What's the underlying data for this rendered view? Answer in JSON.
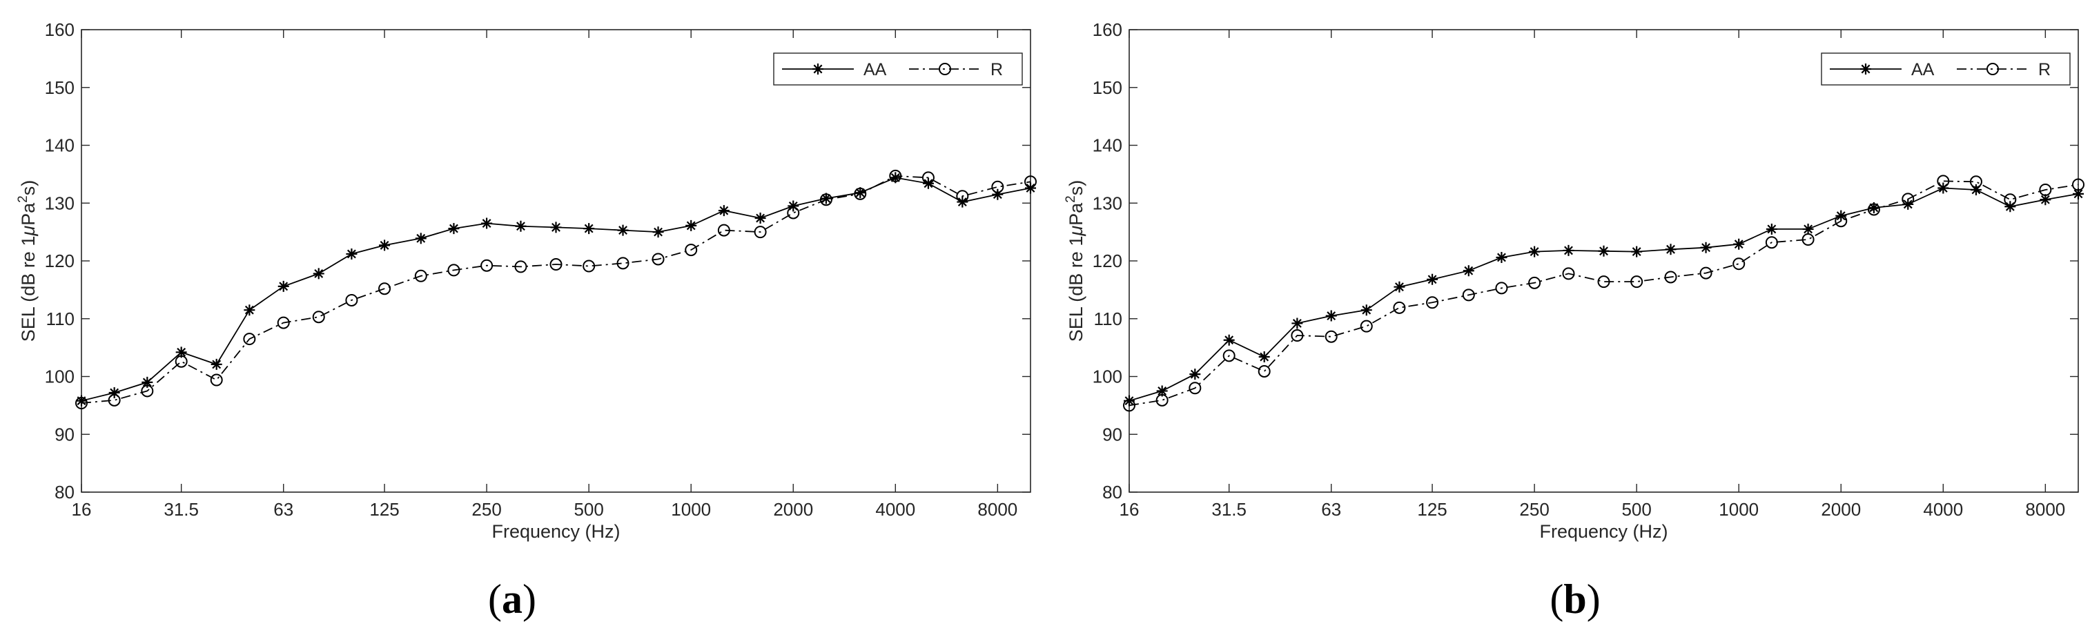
{
  "figure": {
    "panels": [
      {
        "label_open": "(",
        "label_letter": "a",
        "label_close": ")"
      },
      {
        "label_open": "(",
        "label_letter": "b",
        "label_close": ")"
      }
    ]
  },
  "chart_data": [
    {
      "type": "line",
      "title": "",
      "xlabel": "Frequency (Hz)",
      "ylabel_prefix": "SEL (dB re 1",
      "ylabel_mu": "μ",
      "ylabel_pa": "Pa",
      "ylabel_sup": "2",
      "ylabel_suffix": "s)",
      "x_scale": "log",
      "xlim": [
        16,
        10000
      ],
      "ylim": [
        80,
        160
      ],
      "yticks": [
        80,
        90,
        100,
        110,
        120,
        130,
        140,
        150,
        160
      ],
      "xticks": [
        16,
        31.5,
        63,
        125,
        250,
        500,
        1000,
        2000,
        4000,
        8000
      ],
      "xtick_labels": [
        "16",
        "31.5",
        "63",
        "125",
        "250",
        "500",
        "1000",
        "2000",
        "4000",
        "8000"
      ],
      "grid": false,
      "legend_position": "top-right",
      "x": [
        16,
        20,
        25,
        31.5,
        40,
        50,
        63,
        80,
        100,
        125,
        160,
        200,
        250,
        315,
        400,
        500,
        630,
        800,
        1000,
        1250,
        1600,
        2000,
        2500,
        3150,
        4000,
        5000,
        6300,
        8000,
        10000
      ],
      "series": [
        {
          "name": "AA",
          "marker": "star",
          "dash": "solid",
          "color": "#000000",
          "values": [
            95.8,
            97.2,
            99.0,
            104.2,
            102.1,
            111.5,
            115.6,
            117.8,
            121.2,
            122.7,
            123.9,
            125.6,
            126.5,
            126.0,
            125.8,
            125.6,
            125.3,
            125.0,
            126.1,
            128.7,
            127.4,
            129.5,
            130.8,
            131.8,
            134.4,
            133.4,
            130.2,
            131.5,
            132.6
          ]
        },
        {
          "name": "R",
          "marker": "circle",
          "dash": "dashdot",
          "color": "#000000",
          "values": [
            95.4,
            95.9,
            97.5,
            102.6,
            99.4,
            106.5,
            109.3,
            110.3,
            113.2,
            115.2,
            117.4,
            118.4,
            119.2,
            119.0,
            119.4,
            119.1,
            119.6,
            120.3,
            121.9,
            125.3,
            125.0,
            128.3,
            130.6,
            131.6,
            134.7,
            134.4,
            131.2,
            132.8,
            133.7
          ]
        }
      ]
    },
    {
      "type": "line",
      "title": "",
      "xlabel": "Frequency (Hz)",
      "ylabel_prefix": "SEL (dB re 1",
      "ylabel_mu": "μ",
      "ylabel_pa": "Pa",
      "ylabel_sup": "2",
      "ylabel_suffix": "s)",
      "x_scale": "log",
      "xlim": [
        16,
        10000
      ],
      "ylim": [
        80,
        160
      ],
      "yticks": [
        80,
        90,
        100,
        110,
        120,
        130,
        140,
        150,
        160
      ],
      "xticks": [
        16,
        31.5,
        63,
        125,
        250,
        500,
        1000,
        2000,
        4000,
        8000
      ],
      "xtick_labels": [
        "16",
        "31.5",
        "63",
        "125",
        "250",
        "500",
        "1000",
        "2000",
        "4000",
        "8000"
      ],
      "grid": false,
      "legend_position": "top-right",
      "x": [
        16,
        20,
        25,
        31.5,
        40,
        50,
        63,
        80,
        100,
        125,
        160,
        200,
        250,
        315,
        400,
        500,
        630,
        800,
        1000,
        1250,
        1600,
        2000,
        2500,
        3150,
        4000,
        5000,
        6300,
        8000,
        10000
      ],
      "series": [
        {
          "name": "AA",
          "marker": "star",
          "dash": "solid",
          "color": "#000000",
          "values": [
            95.8,
            97.5,
            100.4,
            106.3,
            103.4,
            109.2,
            110.5,
            111.5,
            115.5,
            116.8,
            118.3,
            120.6,
            121.6,
            121.8,
            121.7,
            121.6,
            122.0,
            122.3,
            122.9,
            125.5,
            125.5,
            127.8,
            129.2,
            129.8,
            132.6,
            132.3,
            129.4,
            130.6,
            131.6
          ]
        },
        {
          "name": "R",
          "marker": "circle",
          "dash": "dashdot",
          "color": "#000000",
          "values": [
            95.0,
            95.9,
            98.0,
            103.6,
            100.9,
            107.1,
            106.9,
            108.7,
            111.9,
            112.8,
            114.1,
            115.3,
            116.2,
            117.8,
            116.4,
            116.4,
            117.2,
            117.9,
            119.5,
            123.2,
            123.7,
            126.9,
            128.9,
            130.7,
            133.8,
            133.7,
            130.6,
            132.3,
            133.2
          ]
        }
      ]
    }
  ]
}
